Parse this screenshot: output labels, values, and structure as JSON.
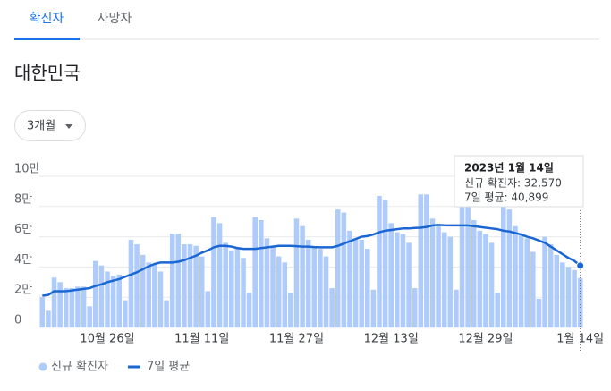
{
  "tabs": [
    "확진자",
    "사망자"
  ],
  "region": "대한민국",
  "dropdown": "3개월",
  "chart_data": {
    "type": "bar",
    "categories": [
      null,
      null,
      null,
      null,
      null,
      null,
      null,
      null,
      null,
      null,
      null,
      "10월 26일",
      null,
      null,
      null,
      null,
      null,
      null,
      null,
      null,
      null,
      null,
      null,
      null,
      null,
      null,
      null,
      "11월 11일",
      null,
      null,
      null,
      null,
      null,
      null,
      null,
      null,
      null,
      null,
      null,
      null,
      null,
      null,
      null,
      "11월 27일",
      null,
      null,
      null,
      null,
      null,
      null,
      null,
      null,
      null,
      null,
      null,
      null,
      null,
      null,
      null,
      "12월 13일",
      null,
      null,
      null,
      null,
      null,
      null,
      null,
      null,
      null,
      null,
      null,
      null,
      null,
      null,
      null,
      "12월 29일",
      null,
      null,
      null,
      null,
      null,
      null,
      null,
      null,
      null,
      null,
      null,
      null,
      null,
      null,
      null,
      "1월 14일"
    ],
    "series": [
      {
        "name": "신규 확진자",
        "type": "bar",
        "color": "#aecbfa",
        "values": [
          20000,
          11000,
          33000,
          30000,
          26000,
          26000,
          27000,
          27000,
          14000,
          44000,
          41000,
          37000,
          34000,
          35000,
          18000,
          58000,
          55000,
          48000,
          43000,
          42000,
          37000,
          18000,
          62000,
          62000,
          55000,
          55000,
          54000,
          47000,
          24000,
          73000,
          69000,
          56000,
          51000,
          52000,
          46000,
          23000,
          73000,
          71000,
          59000,
          53000,
          47000,
          43000,
          23000,
          72000,
          67000,
          58000,
          53000,
          52000,
          47000,
          26000,
          78000,
          76000,
          64000,
          59000,
          58000,
          52000,
          25000,
          87000,
          84000,
          69000,
          63000,
          62000,
          56000,
          26000,
          88000,
          88000,
          72000,
          67000,
          63000,
          60000,
          25000,
          86000,
          82000,
          71000,
          64000,
          62000,
          56000,
          23000,
          85000,
          78000,
          67000,
          61000,
          59000,
          50000,
          19000,
          60000,
          55000,
          48000,
          43000,
          40000,
          38000,
          32570
        ]
      },
      {
        "name": "7일 평균",
        "type": "line",
        "color": "#1a66d2",
        "values": [
          21000,
          21500,
          24000,
          24000,
          24000,
          24500,
          25000,
          25500,
          26000,
          27500,
          28500,
          30000,
          31000,
          32000,
          33500,
          35000,
          36500,
          38500,
          40500,
          42000,
          43000,
          43000,
          43000,
          43500,
          44500,
          46000,
          47500,
          49500,
          51000,
          53000,
          54000,
          54000,
          53500,
          52500,
          52000,
          52000,
          52000,
          52500,
          53000,
          53500,
          54000,
          54000,
          54000,
          53800,
          53500,
          53500,
          53200,
          53000,
          53000,
          53000,
          54000,
          55500,
          57000,
          58500,
          60000,
          60500,
          61500,
          63000,
          64000,
          64500,
          65000,
          65500,
          65500,
          65800,
          66000,
          66500,
          67500,
          67800,
          67600,
          67500,
          67500,
          67500,
          67500,
          67000,
          66500,
          66000,
          65500,
          65000,
          64000,
          63500,
          62500,
          61500,
          60000,
          59000,
          57500,
          56000,
          53500,
          51000,
          48500,
          46000,
          44000,
          40899
        ]
      }
    ],
    "ylim": [
      0,
      100000
    ],
    "yticks": [
      0,
      {
        "value": 20000,
        "label": "2만"
      },
      {
        "value": 40000,
        "label": "4만"
      },
      {
        "value": 60000,
        "label": "6만"
      },
      {
        "value": 80000,
        "label": "8만"
      },
      {
        "value": 100000,
        "label": "10만"
      }
    ],
    "grid": true,
    "tooltip": {
      "title": "2023년 1월 14일",
      "lines": [
        "신규 확진자: 32,570",
        "7일 평균: 40,899"
      ]
    }
  }
}
